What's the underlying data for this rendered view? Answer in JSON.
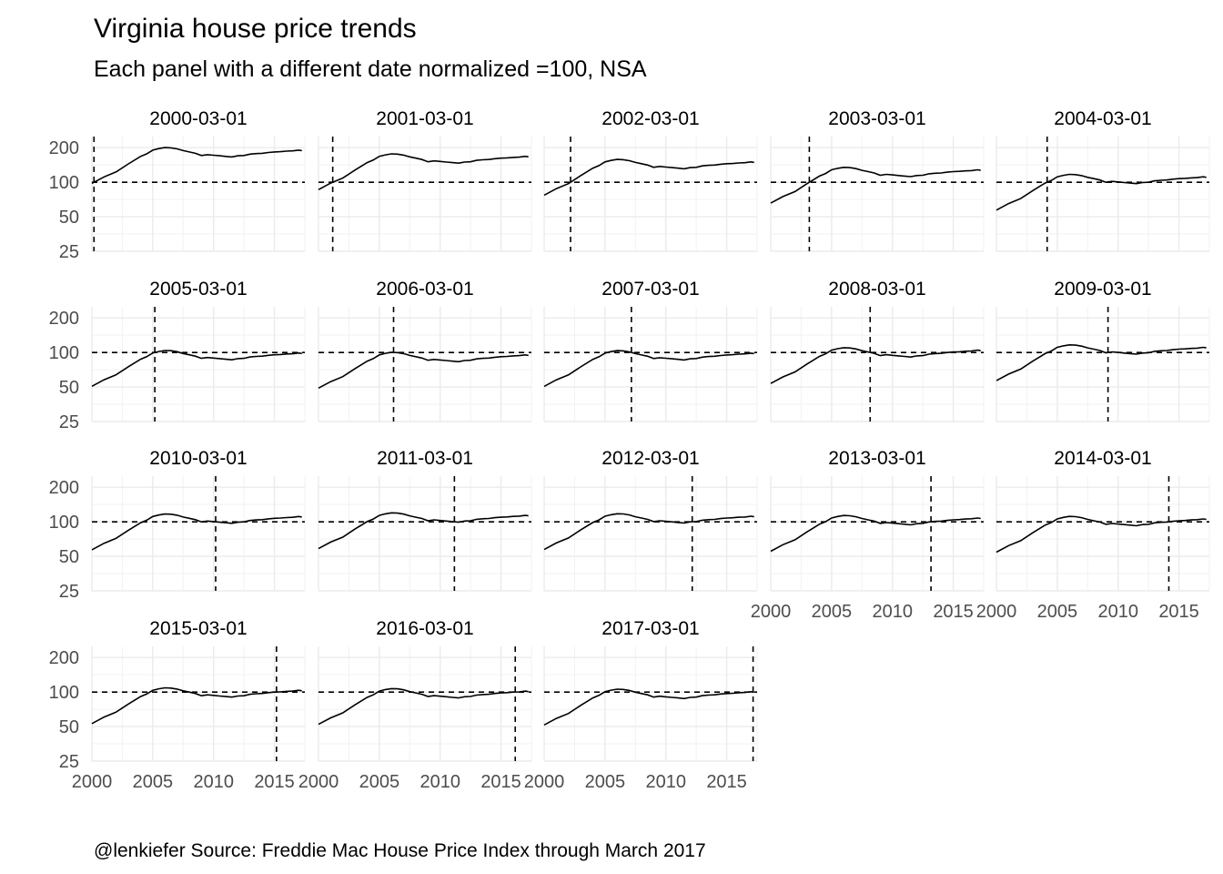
{
  "chart_data": {
    "type": "line",
    "title": "Virginia house price trends",
    "subtitle": "Each panel with a different date normalized =100, NSA",
    "caption": "@lenkiefer Source: Freddie Mac House Price Index through March 2017",
    "xlim": [
      2000,
      2017.5
    ],
    "ylim": [
      25,
      250
    ],
    "y_scale": "log",
    "x_ticks": [
      "2000",
      "2005",
      "2010",
      "2015"
    ],
    "y_ticks": [
      "25",
      "50",
      "100",
      "200"
    ],
    "reference_line_y": 100,
    "grid": true,
    "index_x": [
      2000,
      2001,
      2002,
      2003,
      2004,
      2004.5,
      2005,
      2005.5,
      2006,
      2006.5,
      2007,
      2007.5,
      2008,
      2008.5,
      2009,
      2009.5,
      2010,
      2010.5,
      2011,
      2011.5,
      2012,
      2012.5,
      2013,
      2013.5,
      2014,
      2014.5,
      2015,
      2015.5,
      2016,
      2016.5,
      2017,
      2017.25
    ],
    "index_values": [
      100,
      114,
      126,
      148,
      172,
      181,
      195,
      201,
      205,
      204,
      200,
      193,
      188,
      183,
      175,
      178,
      176,
      174,
      172,
      170,
      174,
      175,
      180,
      182,
      183,
      186,
      188,
      189,
      191,
      192,
      195,
      193
    ],
    "panels": [
      {
        "label": "2000-03-01",
        "date": 2000.17
      },
      {
        "label": "2001-03-01",
        "date": 2001.17
      },
      {
        "label": "2002-03-01",
        "date": 2002.17
      },
      {
        "label": "2003-03-01",
        "date": 2003.17
      },
      {
        "label": "2004-03-01",
        "date": 2004.17
      },
      {
        "label": "2005-03-01",
        "date": 2005.17
      },
      {
        "label": "2006-03-01",
        "date": 2006.17
      },
      {
        "label": "2007-03-01",
        "date": 2007.17
      },
      {
        "label": "2008-03-01",
        "date": 2008.17
      },
      {
        "label": "2009-03-01",
        "date": 2009.17
      },
      {
        "label": "2010-03-01",
        "date": 2010.17
      },
      {
        "label": "2011-03-01",
        "date": 2011.17
      },
      {
        "label": "2012-03-01",
        "date": 2012.17
      },
      {
        "label": "2013-03-01",
        "date": 2013.17
      },
      {
        "label": "2014-03-01",
        "date": 2014.17
      },
      {
        "label": "2015-03-01",
        "date": 2015.17
      },
      {
        "label": "2016-03-01",
        "date": 2016.17
      },
      {
        "label": "2017-03-01",
        "date": 2017.17
      }
    ]
  }
}
